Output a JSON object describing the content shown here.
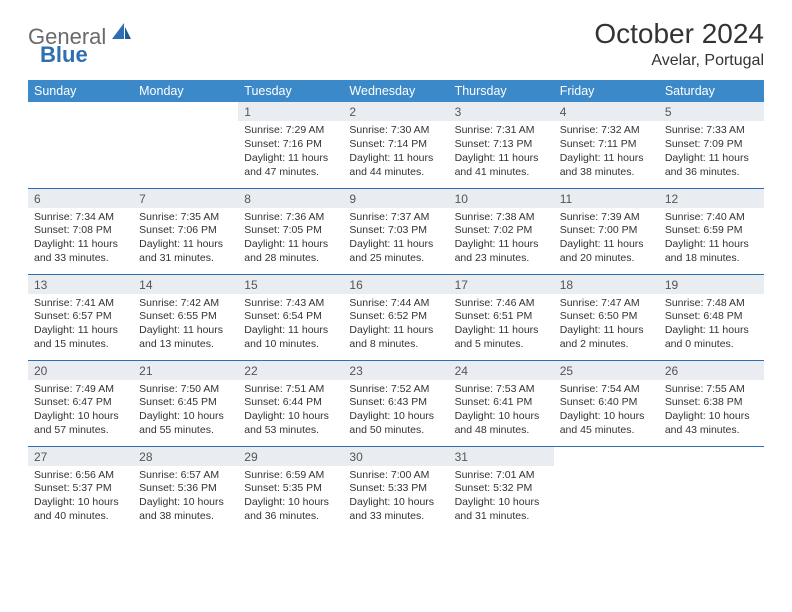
{
  "logo": {
    "word1": "General",
    "word2": "Blue"
  },
  "title": "October 2024",
  "location": "Avelar, Portugal",
  "colors": {
    "headerBg": "#3b89c9",
    "headerText": "#ffffff",
    "dayNumBg": "#e9edf1",
    "rowBorder": "#2d6fb0",
    "logoGray": "#6a6a6a",
    "logoBlue": "#2d6fb0"
  },
  "dayHeaders": [
    "Sunday",
    "Monday",
    "Tuesday",
    "Wednesday",
    "Thursday",
    "Friday",
    "Saturday"
  ],
  "weeks": [
    [
      {
        "n": "",
        "l": [
          "",
          "",
          ""
        ]
      },
      {
        "n": "",
        "l": [
          "",
          "",
          ""
        ]
      },
      {
        "n": "1",
        "l": [
          "Sunrise: 7:29 AM",
          "Sunset: 7:16 PM",
          "Daylight: 11 hours and 47 minutes."
        ]
      },
      {
        "n": "2",
        "l": [
          "Sunrise: 7:30 AM",
          "Sunset: 7:14 PM",
          "Daylight: 11 hours and 44 minutes."
        ]
      },
      {
        "n": "3",
        "l": [
          "Sunrise: 7:31 AM",
          "Sunset: 7:13 PM",
          "Daylight: 11 hours and 41 minutes."
        ]
      },
      {
        "n": "4",
        "l": [
          "Sunrise: 7:32 AM",
          "Sunset: 7:11 PM",
          "Daylight: 11 hours and 38 minutes."
        ]
      },
      {
        "n": "5",
        "l": [
          "Sunrise: 7:33 AM",
          "Sunset: 7:09 PM",
          "Daylight: 11 hours and 36 minutes."
        ]
      }
    ],
    [
      {
        "n": "6",
        "l": [
          "Sunrise: 7:34 AM",
          "Sunset: 7:08 PM",
          "Daylight: 11 hours and 33 minutes."
        ]
      },
      {
        "n": "7",
        "l": [
          "Sunrise: 7:35 AM",
          "Sunset: 7:06 PM",
          "Daylight: 11 hours and 31 minutes."
        ]
      },
      {
        "n": "8",
        "l": [
          "Sunrise: 7:36 AM",
          "Sunset: 7:05 PM",
          "Daylight: 11 hours and 28 minutes."
        ]
      },
      {
        "n": "9",
        "l": [
          "Sunrise: 7:37 AM",
          "Sunset: 7:03 PM",
          "Daylight: 11 hours and 25 minutes."
        ]
      },
      {
        "n": "10",
        "l": [
          "Sunrise: 7:38 AM",
          "Sunset: 7:02 PM",
          "Daylight: 11 hours and 23 minutes."
        ]
      },
      {
        "n": "11",
        "l": [
          "Sunrise: 7:39 AM",
          "Sunset: 7:00 PM",
          "Daylight: 11 hours and 20 minutes."
        ]
      },
      {
        "n": "12",
        "l": [
          "Sunrise: 7:40 AM",
          "Sunset: 6:59 PM",
          "Daylight: 11 hours and 18 minutes."
        ]
      }
    ],
    [
      {
        "n": "13",
        "l": [
          "Sunrise: 7:41 AM",
          "Sunset: 6:57 PM",
          "Daylight: 11 hours and 15 minutes."
        ]
      },
      {
        "n": "14",
        "l": [
          "Sunrise: 7:42 AM",
          "Sunset: 6:55 PM",
          "Daylight: 11 hours and 13 minutes."
        ]
      },
      {
        "n": "15",
        "l": [
          "Sunrise: 7:43 AM",
          "Sunset: 6:54 PM",
          "Daylight: 11 hours and 10 minutes."
        ]
      },
      {
        "n": "16",
        "l": [
          "Sunrise: 7:44 AM",
          "Sunset: 6:52 PM",
          "Daylight: 11 hours and 8 minutes."
        ]
      },
      {
        "n": "17",
        "l": [
          "Sunrise: 7:46 AM",
          "Sunset: 6:51 PM",
          "Daylight: 11 hours and 5 minutes."
        ]
      },
      {
        "n": "18",
        "l": [
          "Sunrise: 7:47 AM",
          "Sunset: 6:50 PM",
          "Daylight: 11 hours and 2 minutes."
        ]
      },
      {
        "n": "19",
        "l": [
          "Sunrise: 7:48 AM",
          "Sunset: 6:48 PM",
          "Daylight: 11 hours and 0 minutes."
        ]
      }
    ],
    [
      {
        "n": "20",
        "l": [
          "Sunrise: 7:49 AM",
          "Sunset: 6:47 PM",
          "Daylight: 10 hours and 57 minutes."
        ]
      },
      {
        "n": "21",
        "l": [
          "Sunrise: 7:50 AM",
          "Sunset: 6:45 PM",
          "Daylight: 10 hours and 55 minutes."
        ]
      },
      {
        "n": "22",
        "l": [
          "Sunrise: 7:51 AM",
          "Sunset: 6:44 PM",
          "Daylight: 10 hours and 53 minutes."
        ]
      },
      {
        "n": "23",
        "l": [
          "Sunrise: 7:52 AM",
          "Sunset: 6:43 PM",
          "Daylight: 10 hours and 50 minutes."
        ]
      },
      {
        "n": "24",
        "l": [
          "Sunrise: 7:53 AM",
          "Sunset: 6:41 PM",
          "Daylight: 10 hours and 48 minutes."
        ]
      },
      {
        "n": "25",
        "l": [
          "Sunrise: 7:54 AM",
          "Sunset: 6:40 PM",
          "Daylight: 10 hours and 45 minutes."
        ]
      },
      {
        "n": "26",
        "l": [
          "Sunrise: 7:55 AM",
          "Sunset: 6:38 PM",
          "Daylight: 10 hours and 43 minutes."
        ]
      }
    ],
    [
      {
        "n": "27",
        "l": [
          "Sunrise: 6:56 AM",
          "Sunset: 5:37 PM",
          "Daylight: 10 hours and 40 minutes."
        ]
      },
      {
        "n": "28",
        "l": [
          "Sunrise: 6:57 AM",
          "Sunset: 5:36 PM",
          "Daylight: 10 hours and 38 minutes."
        ]
      },
      {
        "n": "29",
        "l": [
          "Sunrise: 6:59 AM",
          "Sunset: 5:35 PM",
          "Daylight: 10 hours and 36 minutes."
        ]
      },
      {
        "n": "30",
        "l": [
          "Sunrise: 7:00 AM",
          "Sunset: 5:33 PM",
          "Daylight: 10 hours and 33 minutes."
        ]
      },
      {
        "n": "31",
        "l": [
          "Sunrise: 7:01 AM",
          "Sunset: 5:32 PM",
          "Daylight: 10 hours and 31 minutes."
        ]
      },
      {
        "n": "",
        "l": [
          "",
          "",
          ""
        ]
      },
      {
        "n": "",
        "l": [
          "",
          "",
          ""
        ]
      }
    ]
  ]
}
